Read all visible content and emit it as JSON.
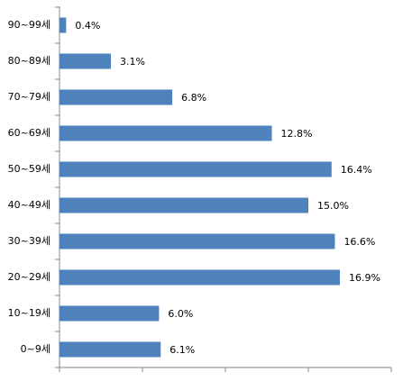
{
  "chart_data": {
    "type": "bar",
    "orientation": "horizontal",
    "categories": [
      "90~99세",
      "80~89세",
      "70~79세",
      "60~69세",
      "50~59세",
      "40~49세",
      "30~39세",
      "20~29세",
      "10~19세",
      "0~9세"
    ],
    "values": [
      0.4,
      3.1,
      6.8,
      12.8,
      16.4,
      15.0,
      16.6,
      16.9,
      6.0,
      6.1
    ],
    "value_labels": [
      "0.4%",
      "3.1%",
      "6.8%",
      "12.8%",
      "16.4%",
      "15.0%",
      "16.6%",
      "16.9%",
      "6.0%",
      "6.1%"
    ],
    "color": "#4f81bd",
    "xlim": [
      0,
      20
    ],
    "xticks": [
      0,
      5,
      10,
      15,
      20
    ]
  }
}
